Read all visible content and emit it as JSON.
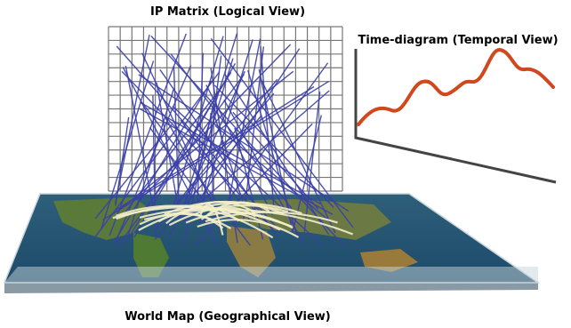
{
  "ip_matrix": {
    "title": "IP Matrix (Logical View)"
  },
  "time_diagram": {
    "title": "Time-diagram (Temporal View)"
  },
  "world_map": {
    "title": "World Map (Geographical View)"
  }
}
